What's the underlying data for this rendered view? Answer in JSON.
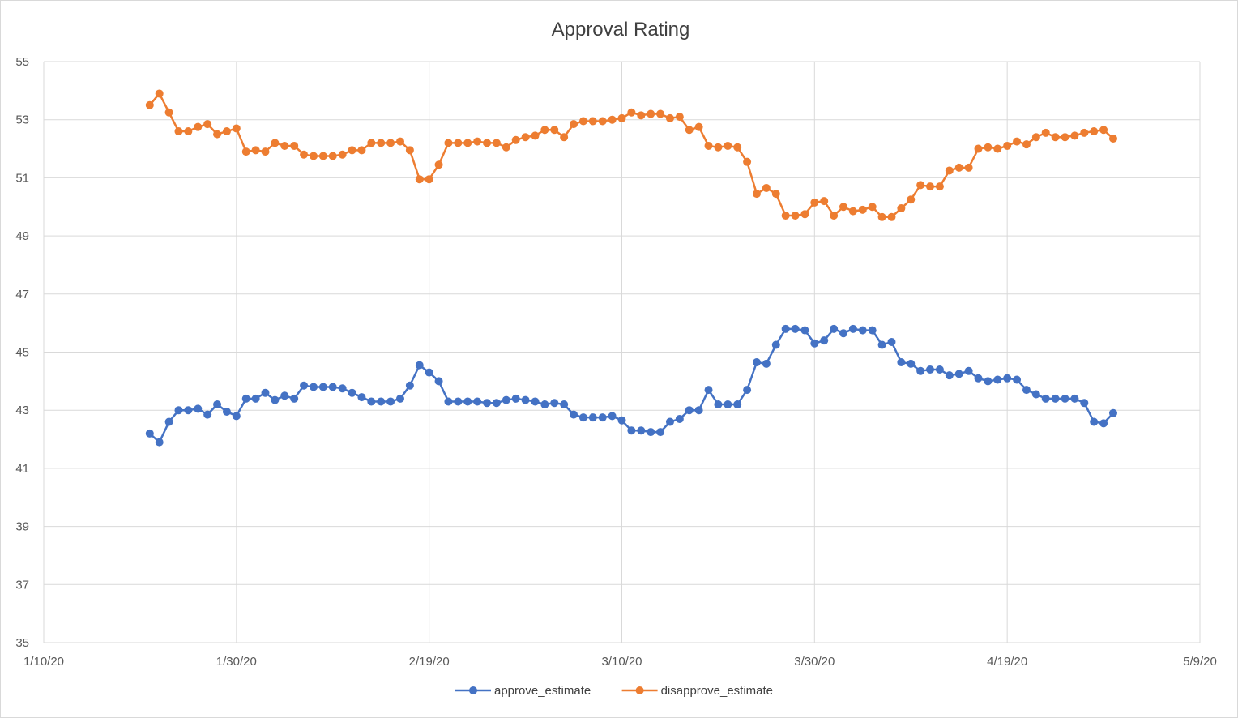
{
  "chart_data": {
    "type": "line",
    "title": "Approval Rating",
    "xlabel": "",
    "ylabel": "",
    "x_axis": {
      "type": "date",
      "range": [
        "2020-01-10",
        "2020-05-09"
      ],
      "tick_dates": [
        "2020-01-10",
        "2020-01-30",
        "2020-02-19",
        "2020-03-10",
        "2020-03-30",
        "2020-04-19",
        "2020-05-09"
      ],
      "tick_labels": [
        "1/10/20",
        "1/30/20",
        "2/19/20",
        "3/10/20",
        "3/30/20",
        "4/19/20",
        "5/9/20"
      ]
    },
    "y_axis": {
      "range": [
        35,
        55
      ],
      "ticks": [
        35,
        37,
        39,
        41,
        43,
        45,
        47,
        49,
        51,
        53,
        55
      ]
    },
    "grid": true,
    "legend_position": "bottom",
    "start_date": "2020-01-21",
    "series": [
      {
        "name": "approve_estimate",
        "color": "#4472c4",
        "values": [
          42.2,
          41.9,
          42.6,
          43.0,
          43.0,
          43.05,
          42.85,
          43.2,
          42.95,
          42.8,
          43.4,
          43.4,
          43.6,
          43.35,
          43.5,
          43.4,
          43.85,
          43.8,
          43.8,
          43.8,
          43.75,
          43.6,
          43.45,
          43.3,
          43.3,
          43.3,
          43.4,
          43.85,
          44.55,
          44.3,
          44.0,
          43.3,
          43.3,
          43.3,
          43.3,
          43.25,
          43.25,
          43.35,
          43.4,
          43.35,
          43.3,
          43.2,
          43.25,
          43.2,
          42.85,
          42.75,
          42.75,
          42.75,
          42.8,
          42.65,
          42.3,
          42.3,
          42.25,
          42.25,
          42.6,
          42.7,
          43.0,
          43.0,
          43.7,
          43.2,
          43.2,
          43.2,
          43.7,
          44.65,
          44.6,
          45.25,
          45.8,
          45.8,
          45.75,
          45.3,
          45.4,
          45.8,
          45.65,
          45.8,
          45.75,
          45.75,
          45.25,
          45.35,
          44.65,
          44.6,
          44.35,
          44.4,
          44.4,
          44.2,
          44.25,
          44.35,
          44.1,
          44.0,
          44.05,
          44.1,
          44.05,
          43.7,
          43.55,
          43.4,
          43.4,
          43.4,
          43.4,
          43.25,
          42.6,
          42.55,
          42.9
        ]
      },
      {
        "name": "disapprove_estimate",
        "color": "#ed7d31",
        "values": [
          53.5,
          53.9,
          53.25,
          52.6,
          52.6,
          52.75,
          52.85,
          52.5,
          52.6,
          52.7,
          51.9,
          51.95,
          51.9,
          52.2,
          52.1,
          52.1,
          51.8,
          51.75,
          51.75,
          51.75,
          51.8,
          51.95,
          51.95,
          52.2,
          52.2,
          52.2,
          52.25,
          51.95,
          50.95,
          50.95,
          51.45,
          52.2,
          52.2,
          52.2,
          52.25,
          52.2,
          52.2,
          52.05,
          52.3,
          52.4,
          52.45,
          52.65,
          52.65,
          52.4,
          52.85,
          52.95,
          52.95,
          52.95,
          53.0,
          53.05,
          53.25,
          53.15,
          53.2,
          53.2,
          53.05,
          53.1,
          52.65,
          52.75,
          52.1,
          52.05,
          52.1,
          52.05,
          51.55,
          50.45,
          50.65,
          50.45,
          49.7,
          49.7,
          49.75,
          50.15,
          50.2,
          49.7,
          50.0,
          49.85,
          49.9,
          50.0,
          49.65,
          49.65,
          49.95,
          50.25,
          50.75,
          50.7,
          50.7,
          51.25,
          51.35,
          51.35,
          52.0,
          52.05,
          52.0,
          52.1,
          52.25,
          52.15,
          52.4,
          52.55,
          52.4,
          52.4,
          52.45,
          52.55,
          52.6,
          52.65,
          52.35
        ]
      }
    ]
  }
}
